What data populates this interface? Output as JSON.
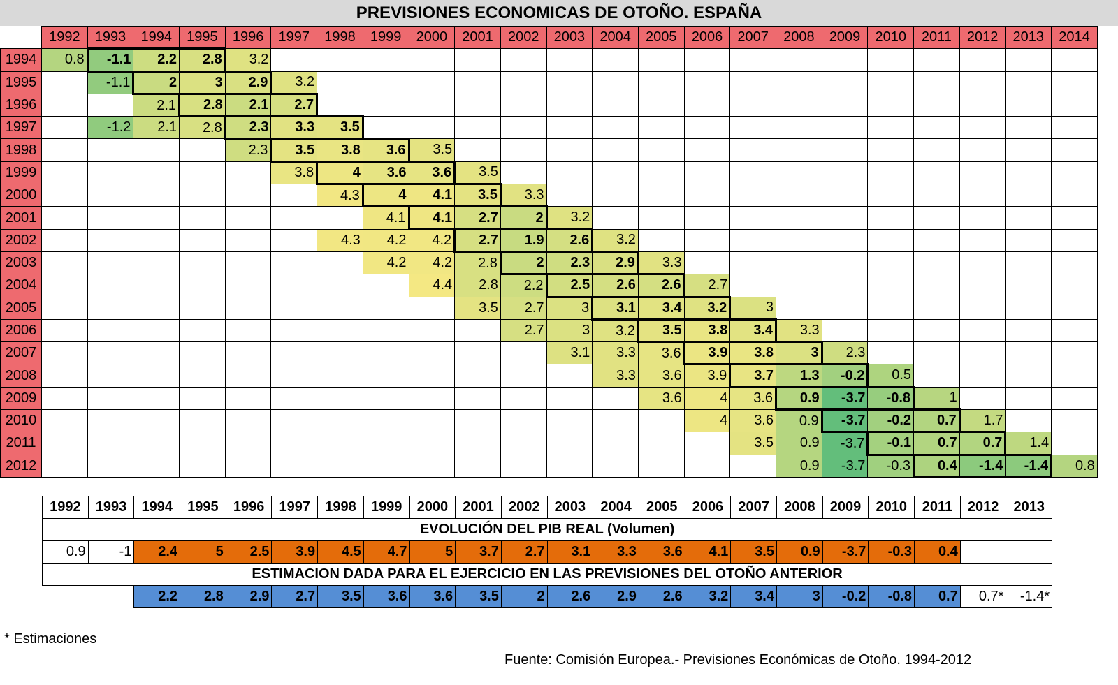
{
  "title": "PREVISIONES ECONOMICAS DE OTOÑO. ESPAÑA",
  "chart_data": {
    "type": "table",
    "forecast_years": [
      "1992",
      "1993",
      "1994",
      "1995",
      "1996",
      "1997",
      "1998",
      "1999",
      "2000",
      "2001",
      "2002",
      "2003",
      "2004",
      "2005",
      "2006",
      "2007",
      "2008",
      "2009",
      "2010",
      "2011",
      "2012",
      "2013",
      "2014"
    ],
    "publication_rows": [
      {
        "year": "1994",
        "start": 0,
        "values": [
          "0.8",
          "-1.1",
          "2.2",
          "2.8",
          "3.2"
        ]
      },
      {
        "year": "1995",
        "start": 1,
        "values": [
          "-1.1",
          "2",
          "3",
          "2.9",
          "3.2"
        ]
      },
      {
        "year": "1996",
        "start": 2,
        "values": [
          "2.1",
          "2.8",
          "2.1",
          "2.7"
        ]
      },
      {
        "year": "1997",
        "start": 1,
        "values": [
          "-1.2",
          "2.1",
          "2.8",
          "2.3",
          "3.3",
          "3.5"
        ]
      },
      {
        "year": "1998",
        "start": 4,
        "values": [
          "2.3",
          "3.5",
          "3.8",
          "3.6",
          "3.5"
        ]
      },
      {
        "year": "1999",
        "start": 5,
        "values": [
          "3.8",
          "4",
          "3.6",
          "3.6",
          "3.5"
        ]
      },
      {
        "year": "2000",
        "start": 6,
        "values": [
          "4.3",
          "4",
          "4.1",
          "3.5",
          "3.3"
        ]
      },
      {
        "year": "2001",
        "start": 7,
        "values": [
          "4.1",
          "4.1",
          "2.7",
          "2",
          "3.2"
        ]
      },
      {
        "year": "2002",
        "start": 6,
        "values": [
          "4.3",
          "4.2",
          "4.2",
          "2.7",
          "1.9",
          "2.6",
          "3.2"
        ]
      },
      {
        "year": "2003",
        "start": 7,
        "values": [
          "4.2",
          "4.2",
          "2.8",
          "2",
          "2.3",
          "2.9",
          "3.3"
        ]
      },
      {
        "year": "2004",
        "start": 8,
        "values": [
          "4.4",
          "2.8",
          "2.2",
          "2.5",
          "2.6",
          "2.6",
          "2.7"
        ]
      },
      {
        "year": "2005",
        "start": 9,
        "values": [
          "3.5",
          "2.7",
          "3",
          "3.1",
          "3.4",
          "3.2",
          "3"
        ]
      },
      {
        "year": "2006",
        "start": 10,
        "values": [
          "2.7",
          "3",
          "3.2",
          "3.5",
          "3.8",
          "3.4",
          "3.3"
        ]
      },
      {
        "year": "2007",
        "start": 11,
        "values": [
          "3.1",
          "3.3",
          "3.6",
          "3.9",
          "3.8",
          "3",
          "2.3"
        ]
      },
      {
        "year": "2008",
        "start": 12,
        "values": [
          "3.3",
          "3.6",
          "3.9",
          "3.7",
          "1.3",
          "-0.2",
          "0.5"
        ]
      },
      {
        "year": "2009",
        "start": 13,
        "values": [
          "3.6",
          "4",
          "3.6",
          "0.9",
          "-3.7",
          "-0.8",
          "1"
        ]
      },
      {
        "year": "2010",
        "start": 14,
        "values": [
          "4",
          "3.6",
          "0.9",
          "-3.7",
          "-0.2",
          "0.7",
          "1.7"
        ]
      },
      {
        "year": "2011",
        "start": 15,
        "values": [
          "3.5",
          "0.9",
          "-3.7",
          "-0.1",
          "0.7",
          "0.7",
          "1.4"
        ]
      },
      {
        "year": "2012",
        "start": 16,
        "values": [
          "0.9",
          "-3.7",
          "-0.3",
          "0.4",
          "-1.4",
          "-1.4",
          "0.8"
        ]
      }
    ],
    "actual_years": [
      "1992",
      "1993",
      "1994",
      "1995",
      "1996",
      "1997",
      "1998",
      "1999",
      "2000",
      "2001",
      "2002",
      "2003",
      "2004",
      "2005",
      "2006",
      "2007",
      "2008",
      "2009",
      "2010",
      "2011",
      "2012",
      "2013"
    ],
    "actual_label": "EVOLUCIÓN DEL PIB REAL (Volumen)",
    "actual_values": [
      "0.9",
      "-1",
      "2.4",
      "5",
      "2.5",
      "3.9",
      "4.5",
      "4.7",
      "5",
      "3.7",
      "2.7",
      "3.1",
      "3.3",
      "3.6",
      "4.1",
      "3.5",
      "0.9",
      "-3.7",
      "-0.3",
      "0.4",
      "",
      ""
    ],
    "prior_label": "ESTIMACION DADA PARA EL EJERCICIO EN LAS PREVISIONES DEL OTOÑO ANTERIOR",
    "prior_values": [
      "",
      "",
      "2.2",
      "2.8",
      "2.9",
      "2.7",
      "3.5",
      "3.6",
      "3.6",
      "3.5",
      "2",
      "2.6",
      "2.9",
      "2.6",
      "3.2",
      "3.4",
      "3",
      "-0.2",
      "-0.8",
      "0.7",
      "0.7*",
      "-1.4*"
    ],
    "colors": {
      "header": "#ee6a6f",
      "actual": "#e46c0a",
      "prior": "#558ed5",
      "title_bg": "#d9d9d9"
    }
  },
  "footnote": "* Estimaciones",
  "source": "Fuente: Comisión Europea.- Previsiones Económicas de Otoño. 1994-2012"
}
